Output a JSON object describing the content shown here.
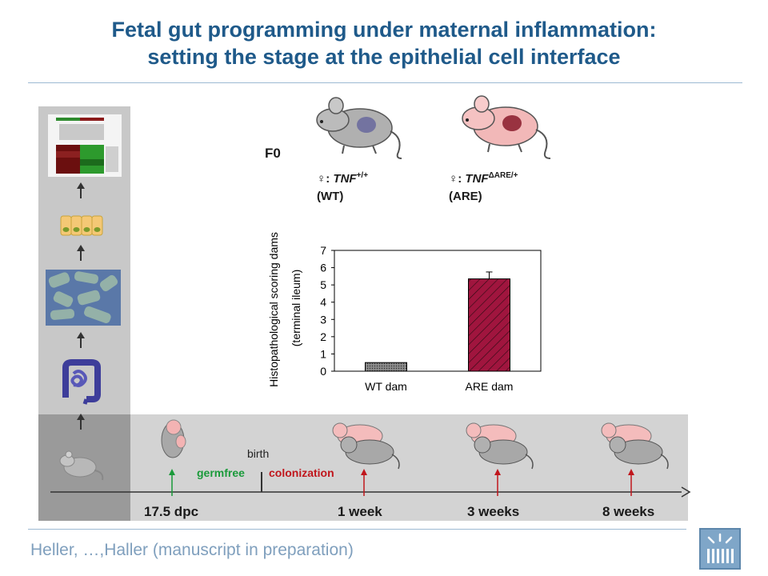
{
  "title": {
    "line1": "Fetal gut programming under maternal inflammation:",
    "line2": "setting the stage at the epithelial cell interface"
  },
  "f0_label": "F0",
  "dams": {
    "wt": {
      "symbol": "♀: ",
      "gene": "TNF",
      "sup": "+/+",
      "name": "(WT)"
    },
    "are": {
      "symbol": "♀: ",
      "gene": "TNF",
      "sup": "ΔARE/+",
      "name": "(ARE)"
    }
  },
  "chart_data": {
    "type": "bar",
    "categories": [
      "WT dam",
      "ARE dam"
    ],
    "values": [
      0.5,
      5.35
    ],
    "errors": [
      0,
      0.4
    ],
    "ylabel": "Histopathological scoring dams",
    "ylabel2": "(terminal ileum)",
    "ylim": [
      0,
      7
    ],
    "yticks": [
      "0",
      "1",
      "2",
      "3",
      "4",
      "5",
      "6",
      "7"
    ],
    "colors": [
      "#7a7a7a",
      "#a0153e"
    ]
  },
  "timeline": {
    "birth": "birth",
    "germfree": "germfree",
    "colonization": "colonization",
    "points": [
      "17.5 dpc",
      "1 week",
      "3 weeks",
      "8 weeks"
    ],
    "germfree_color": "#1a9a3a",
    "colonization_color": "#c0161c"
  },
  "footer": "Heller, …,Haller (manuscript in preparation)"
}
